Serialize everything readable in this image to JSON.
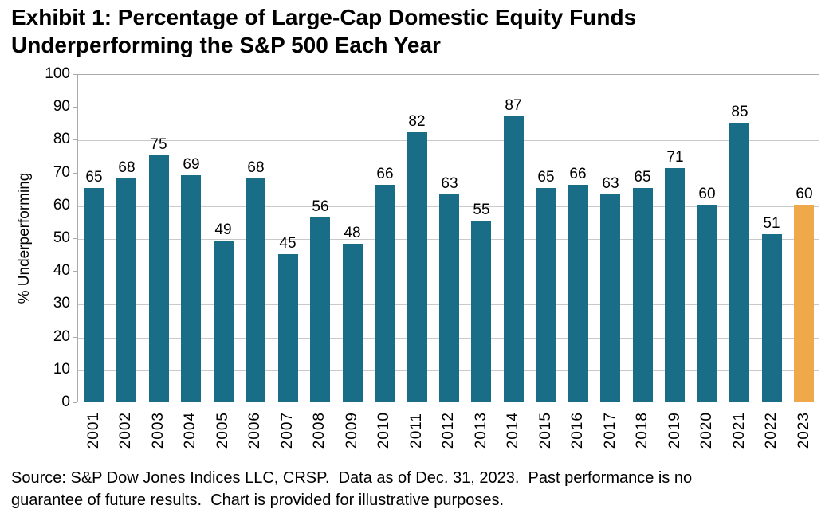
{
  "title_lines": [
    "Exhibit 1: Percentage of Large-Cap Domestic Equity Funds",
    "Underperforming the S&P 500 Each Year"
  ],
  "source_lines": [
    "Source: S&P Dow Jones Indices LLC, CRSP.  Data as of Dec. 31, 2023.  Past performance is no",
    "guarantee of future results.  Chart is provided for illustrative purposes."
  ],
  "chart_data": {
    "type": "bar",
    "title": "Exhibit 1: Percentage of Large-Cap Domestic Equity Funds Underperforming the S&P 500 Each Year",
    "categories": [
      "2001",
      "2002",
      "2003",
      "2004",
      "2005",
      "2006",
      "2007",
      "2008",
      "2009",
      "2010",
      "2011",
      "2012",
      "2013",
      "2014",
      "2015",
      "2016",
      "2017",
      "2018",
      "2019",
      "2020",
      "2021",
      "2022",
      "2023"
    ],
    "values": [
      65,
      68,
      75,
      69,
      49,
      68,
      45,
      56,
      48,
      66,
      82,
      63,
      55,
      87,
      65,
      66,
      63,
      65,
      71,
      60,
      85,
      51,
      60
    ],
    "xlabel": "",
    "ylabel": "% Underperforming",
    "ylim": [
      0,
      100
    ],
    "yticks": [
      0,
      10,
      20,
      30,
      40,
      50,
      60,
      70,
      80,
      90,
      100
    ],
    "grid": true,
    "legend": "none",
    "data_labels": true,
    "bar_color": "#1a6d87",
    "highlight_index": 22,
    "highlight_color": "#efa84a",
    "gridline_color": "#c9c9c9",
    "axis_border_color": "#aaaaaa"
  }
}
